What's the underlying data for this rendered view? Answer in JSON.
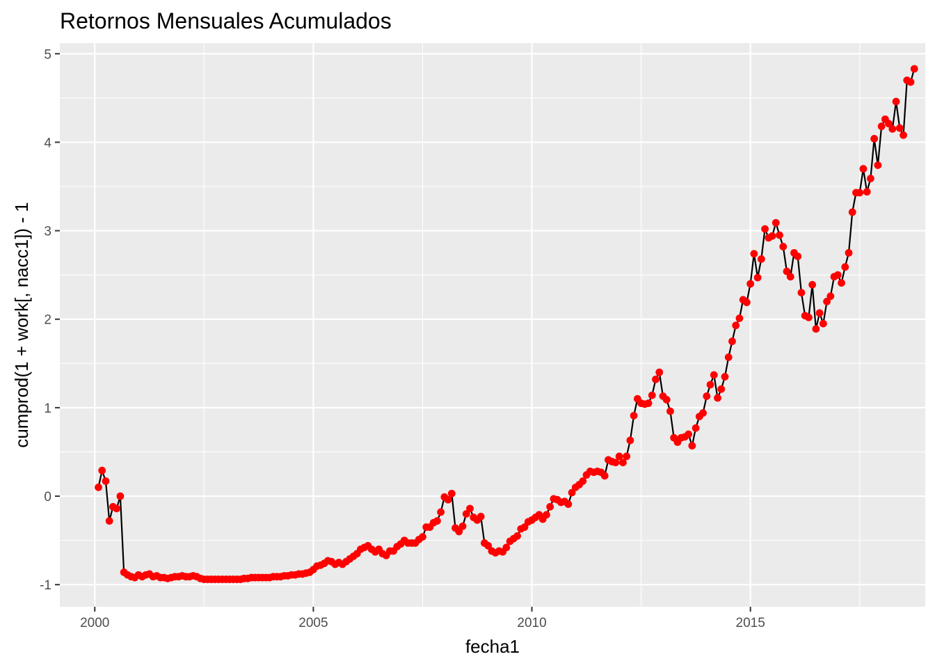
{
  "chart_data": {
    "type": "line",
    "title": "Retornos Mensuales Acumulados",
    "xlabel": "fecha1",
    "ylabel": "cumprod(1 + work[, nacc1]) - 1",
    "x_ticks": [
      2000,
      2005,
      2010,
      2015
    ],
    "y_ticks": [
      -1,
      0,
      1,
      2,
      3,
      4,
      5
    ],
    "xlim": [
      1999.2,
      2019.0
    ],
    "ylim": [
      -1.25,
      5.12
    ],
    "grid": true,
    "legend": "none",
    "line_color": "#000000",
    "point_color": "#ff0000",
    "panel_color": "#ebebeb",
    "series": [
      {
        "x_start": 2000.083,
        "x_step": 0.08333,
        "values": [
          0.1,
          0.29,
          0.17,
          -0.28,
          -0.12,
          -0.14,
          0.0,
          -0.86,
          -0.89,
          -0.91,
          -0.92,
          -0.89,
          -0.91,
          -0.89,
          -0.88,
          -0.91,
          -0.9,
          -0.92,
          -0.92,
          -0.93,
          -0.92,
          -0.91,
          -0.91,
          -0.9,
          -0.91,
          -0.91,
          -0.9,
          -0.91,
          -0.93,
          -0.94,
          -0.94,
          -0.94,
          -0.94,
          -0.94,
          -0.94,
          -0.94,
          -0.94,
          -0.94,
          -0.94,
          -0.94,
          -0.93,
          -0.93,
          -0.92,
          -0.92,
          -0.92,
          -0.92,
          -0.92,
          -0.92,
          -0.91,
          -0.91,
          -0.91,
          -0.9,
          -0.9,
          -0.89,
          -0.89,
          -0.88,
          -0.88,
          -0.87,
          -0.86,
          -0.83,
          -0.79,
          -0.78,
          -0.76,
          -0.73,
          -0.74,
          -0.77,
          -0.75,
          -0.77,
          -0.74,
          -0.71,
          -0.68,
          -0.65,
          -0.6,
          -0.58,
          -0.56,
          -0.6,
          -0.63,
          -0.6,
          -0.65,
          -0.67,
          -0.62,
          -0.62,
          -0.57,
          -0.54,
          -0.5,
          -0.53,
          -0.53,
          -0.53,
          -0.49,
          -0.46,
          -0.35,
          -0.35,
          -0.3,
          -0.28,
          -0.18,
          -0.01,
          -0.04,
          0.03,
          -0.36,
          -0.4,
          -0.34,
          -0.2,
          -0.14,
          -0.24,
          -0.27,
          -0.23,
          -0.53,
          -0.56,
          -0.62,
          -0.64,
          -0.62,
          -0.63,
          -0.58,
          -0.51,
          -0.48,
          -0.45,
          -0.37,
          -0.35,
          -0.29,
          -0.27,
          -0.24,
          -0.21,
          -0.26,
          -0.21,
          -0.12,
          -0.03,
          -0.04,
          -0.07,
          -0.06,
          -0.09,
          0.04,
          0.1,
          0.13,
          0.17,
          0.24,
          0.28,
          0.27,
          0.28,
          0.27,
          0.23,
          0.41,
          0.39,
          0.38,
          0.45,
          0.38,
          0.45,
          0.63,
          0.91,
          1.1,
          1.05,
          1.04,
          1.05,
          1.14,
          1.32,
          1.4,
          1.13,
          1.09,
          0.96,
          0.66,
          0.61,
          0.66,
          0.67,
          0.7,
          0.57,
          0.77,
          0.9,
          0.94,
          1.13,
          1.26,
          1.37,
          1.11,
          1.21,
          1.35,
          1.57,
          1.75,
          1.93,
          2.01,
          2.22,
          2.19,
          2.4,
          2.74,
          2.47,
          2.68,
          3.02,
          2.92,
          2.94,
          3.09,
          2.95,
          2.82,
          2.54,
          2.48,
          2.75,
          2.71,
          2.3,
          2.04,
          2.02,
          2.39,
          1.89,
          2.07,
          1.95,
          2.2,
          2.26,
          2.48,
          2.5,
          2.41,
          2.59,
          2.75,
          3.21,
          3.43,
          3.43,
          3.7,
          3.44,
          3.59,
          4.04,
          3.74,
          4.18,
          4.26,
          4.21,
          4.15,
          4.46,
          4.16,
          4.08,
          4.7,
          4.68,
          4.83
        ]
      }
    ]
  }
}
